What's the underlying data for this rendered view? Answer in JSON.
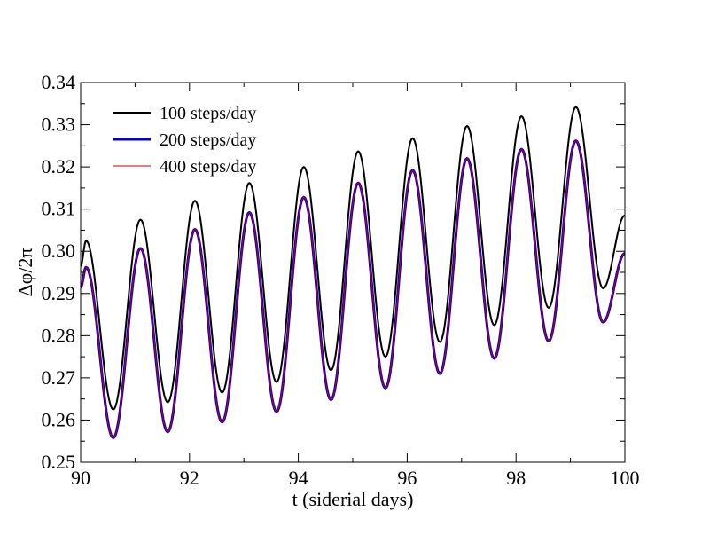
{
  "chart_data": {
    "type": "line",
    "xlabel": "t (siderial days)",
    "ylabel": "Δφ/2π",
    "xlim": [
      90,
      100
    ],
    "ylim": [
      0.25,
      0.34
    ],
    "xticks": [
      90,
      92,
      94,
      96,
      98,
      100
    ],
    "xtick_labels": [
      "90",
      "92",
      "94",
      "96",
      "98",
      "100"
    ],
    "yticks": [
      0.25,
      0.26,
      0.27,
      0.28,
      0.29,
      0.3,
      0.31,
      0.32,
      0.33,
      0.34
    ],
    "ytick_labels": [
      "0.25",
      "0.26",
      "0.27",
      "0.28",
      "0.29",
      "0.30",
      "0.31",
      "0.32",
      "0.33",
      "0.34"
    ],
    "grid": false,
    "legend_position": "top-left",
    "series": [
      {
        "name": "100 steps/day",
        "color": "#000000",
        "stroke_width": 2,
        "x": [
          90.0,
          90.1,
          90.6,
          91.1,
          91.6,
          92.1,
          92.6,
          93.1,
          93.6,
          94.1,
          94.6,
          95.1,
          95.6,
          96.1,
          96.6,
          97.1,
          97.6,
          98.1,
          98.6,
          99.1,
          99.6,
          100.0
        ],
        "y": [
          0.2965,
          0.3025,
          0.2625,
          0.3075,
          0.2642,
          0.312,
          0.2665,
          0.3162,
          0.269,
          0.32,
          0.2718,
          0.3237,
          0.275,
          0.3268,
          0.2785,
          0.3297,
          0.2825,
          0.332,
          0.2866,
          0.3342,
          0.2912,
          0.3085
        ]
      },
      {
        "name": "200 steps/day",
        "color": "#0000cc",
        "stroke_width": 3,
        "x": [
          90.0,
          90.1,
          90.6,
          91.1,
          91.6,
          92.1,
          92.6,
          93.1,
          93.6,
          94.1,
          94.6,
          95.1,
          95.6,
          96.1,
          96.6,
          97.1,
          97.6,
          98.1,
          98.6,
          99.1,
          99.6,
          100.0
        ],
        "y": [
          0.2915,
          0.2962,
          0.2558,
          0.3007,
          0.2572,
          0.3052,
          0.2595,
          0.3092,
          0.262,
          0.3128,
          0.2648,
          0.3162,
          0.2676,
          0.3192,
          0.271,
          0.322,
          0.2746,
          0.3242,
          0.2787,
          0.3262,
          0.2832,
          0.2995
        ]
      },
      {
        "name": "400 steps/day",
        "color": "#cc0000",
        "stroke_width": 1,
        "x": [
          90.0,
          90.1,
          90.6,
          91.1,
          91.6,
          92.1,
          92.6,
          93.1,
          93.6,
          94.1,
          94.6,
          95.1,
          95.6,
          96.1,
          96.6,
          97.1,
          97.6,
          98.1,
          98.6,
          99.1,
          99.6,
          100.0
        ],
        "y": [
          0.2915,
          0.2962,
          0.2558,
          0.3007,
          0.2572,
          0.3052,
          0.2595,
          0.3092,
          0.262,
          0.3128,
          0.2648,
          0.3162,
          0.2676,
          0.3192,
          0.271,
          0.322,
          0.2746,
          0.3242,
          0.2787,
          0.3262,
          0.2832,
          0.2995
        ]
      }
    ]
  }
}
